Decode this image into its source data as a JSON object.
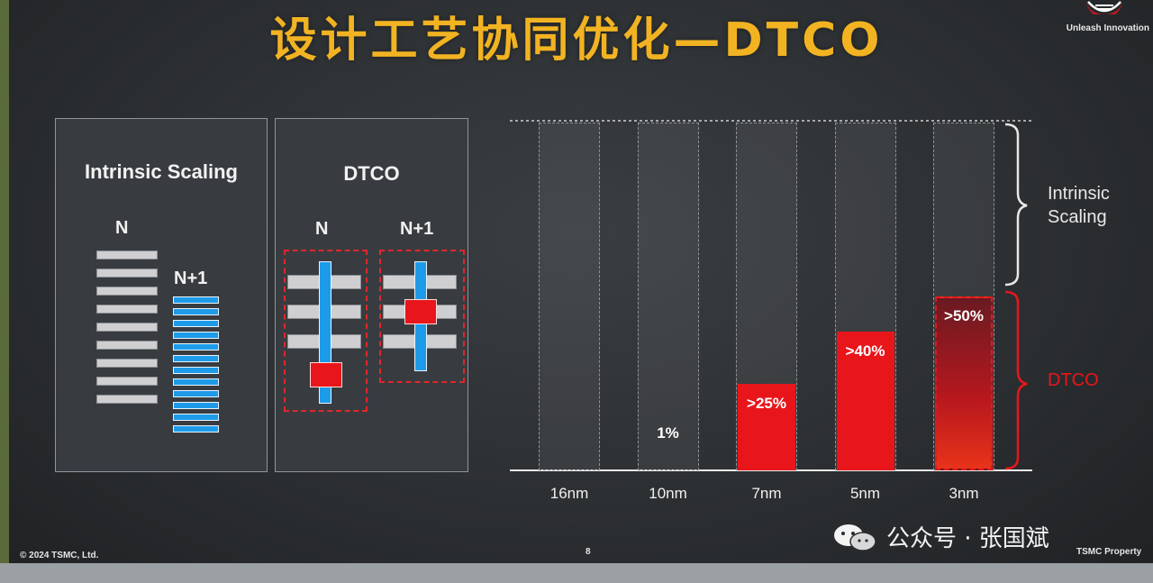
{
  "slide": {
    "title": "设计工艺协同优化—DTCO",
    "tagline": "Unleash Innovation",
    "copyright": "© 2024 TSMC, Ltd.",
    "page_number": "8",
    "property": "TSMC Property",
    "watermark": "公众号 · 张国斌",
    "colors": {
      "title": "#f2b322",
      "dtco_red": "#e8161b",
      "accent_blue": "#1e9be8"
    }
  },
  "panel_intrinsic": {
    "title": "Intrinsic Scaling",
    "label_n": "N",
    "label_n1": "N+1",
    "gray_line_count": 9,
    "blue_line_count": 12
  },
  "panel_dtco": {
    "title": "DTCO",
    "label_n": "N",
    "label_n1": "N+1"
  },
  "chart_data": {
    "type": "bar",
    "title": "",
    "xlabel": "",
    "ylabel": "",
    "categories": [
      "16nm",
      "10nm",
      "7nm",
      "5nm",
      "3nm"
    ],
    "series": [
      {
        "name": "DTCO",
        "values": [
          0,
          1,
          25,
          40,
          50
        ],
        "labels": [
          "",
          "1%",
          ">25%",
          ">40%",
          ">50%"
        ]
      }
    ],
    "total_scaling": 100,
    "ylim": [
      0,
      100
    ],
    "brace_labels": {
      "upper": "Intrinsic Scaling",
      "lower": "DTCO"
    },
    "colors": {
      "dtco": "#e8161b",
      "intrinsic_label": "#e8e8e8",
      "dtco_label": "#e8161b"
    }
  }
}
